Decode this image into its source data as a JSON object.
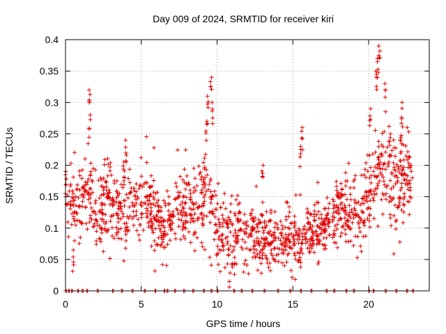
{
  "chart_data": {
    "type": "scatter",
    "title": "Day 009 of 2024, SRMTID for receiver kiri",
    "xlabel": "GPS time / hours",
    "ylabel": "SRMTID / TECUs",
    "xlim": [
      0,
      24
    ],
    "ylim": [
      0,
      0.4
    ],
    "x_ticks": [
      0,
      5,
      10,
      15,
      20
    ],
    "x_tick_labels": [
      "0",
      "5",
      "10",
      "15",
      "20"
    ],
    "y_ticks": [
      0,
      0.05,
      0.1,
      0.15,
      0.2,
      0.25,
      0.3,
      0.35,
      0.4
    ],
    "y_tick_labels": [
      "0",
      "0.05",
      "0.1",
      "0.15",
      "0.2",
      "0.25",
      "0.3",
      "0.35",
      "0.4"
    ],
    "grid": true,
    "marker": "+",
    "series": [
      {
        "name": "SRMTID",
        "color": "#e00000",
        "profile_hours": [
          0.0,
          0.5,
          1.0,
          1.5,
          2.0,
          2.5,
          3.0,
          3.5,
          4.0,
          4.5,
          5.0,
          5.5,
          6.0,
          6.5,
          7.0,
          7.5,
          8.0,
          8.5,
          9.0,
          9.5,
          10.0,
          10.5,
          11.0,
          11.5,
          12.0,
          12.5,
          13.0,
          13.5,
          14.0,
          14.5,
          15.0,
          15.5,
          16.0,
          16.5,
          17.0,
          17.5,
          18.0,
          18.5,
          19.0,
          19.5,
          20.0,
          20.5,
          21.0,
          21.5,
          22.0,
          22.5,
          22.9
        ],
        "profile_median": [
          0.15,
          0.14,
          0.15,
          0.16,
          0.12,
          0.13,
          0.15,
          0.13,
          0.15,
          0.14,
          0.15,
          0.14,
          0.12,
          0.1,
          0.12,
          0.14,
          0.13,
          0.12,
          0.15,
          0.14,
          0.1,
          0.09,
          0.08,
          0.1,
          0.09,
          0.08,
          0.08,
          0.08,
          0.07,
          0.08,
          0.07,
          0.08,
          0.09,
          0.09,
          0.1,
          0.1,
          0.14,
          0.12,
          0.12,
          0.13,
          0.15,
          0.19,
          0.19,
          0.18,
          0.17,
          0.18,
          0.16
        ],
        "profile_spread": [
          0.03,
          0.03,
          0.03,
          0.04,
          0.03,
          0.03,
          0.04,
          0.03,
          0.04,
          0.03,
          0.03,
          0.03,
          0.03,
          0.03,
          0.03,
          0.03,
          0.03,
          0.03,
          0.04,
          0.04,
          0.03,
          0.03,
          0.03,
          0.03,
          0.03,
          0.02,
          0.03,
          0.02,
          0.02,
          0.02,
          0.02,
          0.02,
          0.02,
          0.02,
          0.02,
          0.02,
          0.03,
          0.03,
          0.03,
          0.03,
          0.03,
          0.03,
          0.04,
          0.04,
          0.04,
          0.04,
          0.03
        ],
        "peaks": [
          {
            "x": 1.6,
            "y": 0.32
          },
          {
            "x": 1.6,
            "y": 0.28
          },
          {
            "x": 4.0,
            "y": 0.24
          },
          {
            "x": 9.4,
            "y": 0.31
          },
          {
            "x": 9.6,
            "y": 0.34
          },
          {
            "x": 9.7,
            "y": 0.3
          },
          {
            "x": 9.3,
            "y": 0.27
          },
          {
            "x": 15.6,
            "y": 0.26
          },
          {
            "x": 15.5,
            "y": 0.23
          },
          {
            "x": 13.0,
            "y": 0.2
          },
          {
            "x": 20.1,
            "y": 0.29
          },
          {
            "x": 20.7,
            "y": 0.39
          },
          {
            "x": 20.6,
            "y": 0.37
          },
          {
            "x": 21.1,
            "y": 0.33
          },
          {
            "x": 22.2,
            "y": 0.3
          },
          {
            "x": 20.5,
            "y": 0.35
          },
          {
            "x": 0.0,
            "y": 0.19
          },
          {
            "x": 0.5,
            "y": 0.065
          },
          {
            "x": 10.8,
            "y": 0.015
          },
          {
            "x": 21.4,
            "y": 0.25
          }
        ],
        "zero_points_x": [
          0.0,
          0.2,
          0.4,
          0.8,
          1.1,
          1.4,
          2.1,
          3.1,
          3.7,
          4.4,
          5.2,
          5.9,
          6.5,
          6.7,
          7.2,
          7.8,
          8.4,
          9.1,
          9.6,
          10.0,
          11.1,
          11.6,
          12.3,
          13.1,
          14.0,
          14.8,
          15.5,
          16.2,
          17.2,
          17.7,
          18.5,
          19.0,
          20.0,
          20.3,
          21.1,
          21.8,
          22.5,
          22.9
        ]
      }
    ]
  }
}
